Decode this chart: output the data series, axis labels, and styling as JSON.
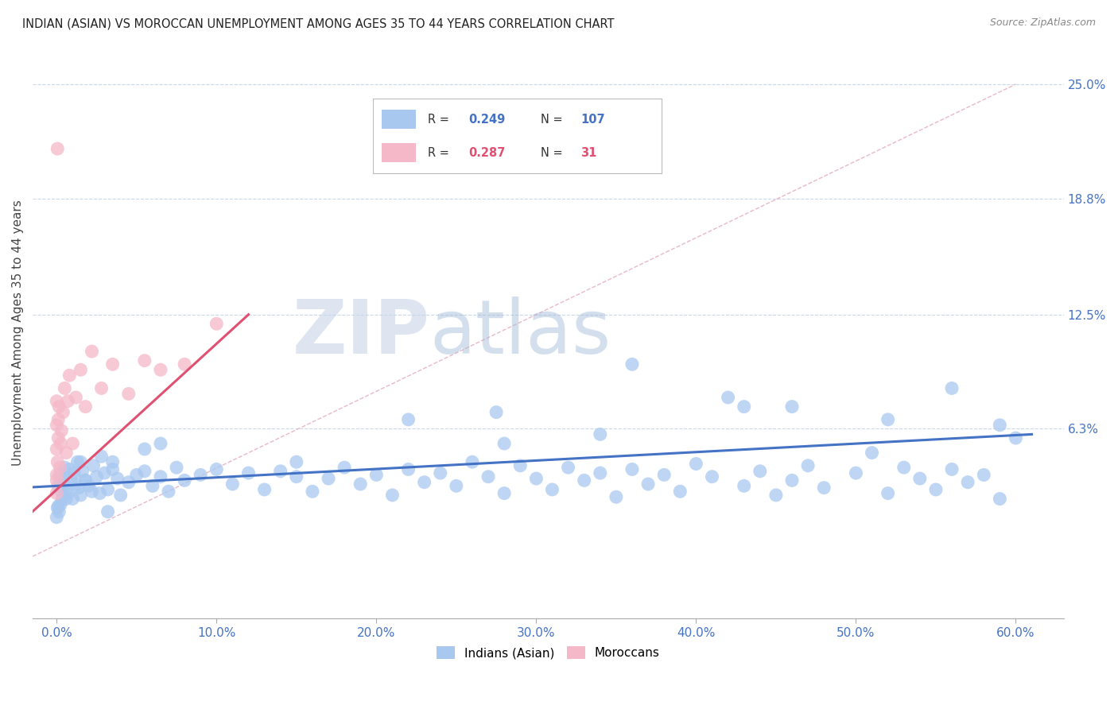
{
  "title": "INDIAN (ASIAN) VS MOROCCAN UNEMPLOYMENT AMONG AGES 35 TO 44 YEARS CORRELATION CHART",
  "source": "Source: ZipAtlas.com",
  "ylabel": "Unemployment Among Ages 35 to 44 years",
  "xlabel_ticks": [
    "0.0%",
    "10.0%",
    "20.0%",
    "30.0%",
    "40.0%",
    "50.0%",
    "60.0%"
  ],
  "xlabel_vals": [
    0.0,
    10.0,
    20.0,
    30.0,
    40.0,
    50.0,
    60.0
  ],
  "ylabel_ticks": [
    "6.3%",
    "12.5%",
    "18.8%",
    "25.0%"
  ],
  "ylabel_vals": [
    6.3,
    12.5,
    18.8,
    25.0
  ],
  "xlim": [
    -1.5,
    63
  ],
  "ylim": [
    -4.0,
    27.0
  ],
  "legend_label_1": "Indians (Asian)",
  "legend_label_2": "Moroccans",
  "r1": 0.249,
  "n1": 107,
  "r2": 0.287,
  "n2": 31,
  "color_blue": "#a8c8f0",
  "color_pink": "#f5b8c8",
  "color_blue_text": "#4472c4",
  "color_pink_text": "#e05070",
  "color_trend_blue": "#4472c4",
  "color_trend_pink": "#e05070",
  "color_diagonal": "#e8b8c8",
  "color_grid": "#c8d8e8",
  "trend_blue_x0": 0.0,
  "trend_blue_y0": 3.2,
  "trend_blue_x1": 61.0,
  "trend_blue_y1": 6.0,
  "trend_pink_x0": 0.0,
  "trend_pink_y0": 3.0,
  "trend_pink_x1": 12.0,
  "trend_pink_y1": 12.5,
  "indian_x": [
    0.1,
    0.1,
    0.2,
    0.3,
    0.4,
    0.5,
    0.6,
    0.7,
    0.8,
    0.9,
    1.0,
    1.1,
    1.2,
    1.3,
    1.4,
    1.5,
    1.6,
    1.8,
    2.0,
    2.2,
    2.3,
    2.5,
    2.7,
    3.0,
    3.2,
    3.5,
    3.8,
    4.0,
    4.5,
    5.0,
    5.5,
    6.0,
    6.5,
    7.0,
    7.5,
    8.0,
    9.0,
    10.0,
    11.0,
    12.0,
    13.0,
    14.0,
    15.0,
    16.0,
    17.0,
    18.0,
    19.0,
    20.0,
    21.0,
    22.0,
    23.0,
    24.0,
    25.0,
    26.0,
    27.0,
    28.0,
    29.0,
    30.0,
    31.0,
    32.0,
    33.0,
    34.0,
    35.0,
    36.0,
    37.0,
    38.0,
    39.0,
    40.0,
    41.0,
    43.0,
    44.0,
    45.0,
    46.0,
    47.0,
    48.0,
    50.0,
    52.0,
    53.0,
    54.0,
    55.0,
    56.0,
    57.0,
    58.0,
    59.0,
    60.0,
    0.0,
    0.05,
    0.15,
    0.25,
    0.35,
    1.8,
    2.8,
    3.5,
    5.5,
    15.0,
    22.0,
    28.0,
    34.0,
    43.0,
    51.0,
    56.0,
    59.0,
    27.5,
    36.0,
    42.0,
    46.0,
    52.0,
    0.6,
    1.5,
    3.2,
    6.5
  ],
  "indian_y": [
    3.2,
    2.1,
    3.8,
    2.9,
    3.5,
    4.2,
    3.0,
    2.8,
    4.1,
    3.6,
    2.5,
    3.9,
    3.3,
    4.5,
    3.1,
    2.7,
    4.0,
    3.5,
    3.2,
    2.9,
    4.3,
    3.7,
    2.8,
    3.9,
    3.0,
    4.1,
    3.6,
    2.7,
    3.4,
    3.8,
    4.0,
    3.2,
    3.7,
    2.9,
    4.2,
    3.5,
    3.8,
    4.1,
    3.3,
    3.9,
    3.0,
    4.0,
    3.7,
    2.9,
    3.6,
    4.2,
    3.3,
    3.8,
    2.7,
    4.1,
    3.4,
    3.9,
    3.2,
    4.5,
    3.7,
    2.8,
    4.3,
    3.6,
    3.0,
    4.2,
    3.5,
    3.9,
    2.6,
    4.1,
    3.3,
    3.8,
    2.9,
    4.4,
    3.7,
    3.2,
    4.0,
    2.7,
    3.5,
    4.3,
    3.1,
    3.9,
    2.8,
    4.2,
    3.6,
    3.0,
    4.1,
    3.4,
    3.8,
    2.5,
    5.8,
    1.5,
    2.0,
    1.8,
    2.2,
    2.5,
    3.5,
    4.8,
    4.5,
    5.2,
    4.5,
    6.8,
    5.5,
    6.0,
    7.5,
    5.0,
    8.5,
    6.5,
    7.2,
    9.8,
    8.0,
    7.5,
    6.8,
    2.5,
    4.5,
    1.8,
    5.5
  ],
  "moroccan_x": [
    0.0,
    0.0,
    0.0,
    0.0,
    0.05,
    0.1,
    0.1,
    0.15,
    0.2,
    0.25,
    0.3,
    0.4,
    0.5,
    0.6,
    0.7,
    0.8,
    1.0,
    1.2,
    1.5,
    1.8,
    2.2,
    2.8,
    3.5,
    4.5,
    5.5,
    6.5,
    8.0,
    10.0,
    0.0,
    0.0,
    0.05
  ],
  "moroccan_y": [
    3.8,
    5.2,
    6.5,
    7.8,
    4.5,
    5.8,
    6.8,
    7.5,
    4.2,
    5.5,
    6.2,
    7.2,
    8.5,
    5.0,
    7.8,
    9.2,
    5.5,
    8.0,
    9.5,
    7.5,
    10.5,
    8.5,
    9.8,
    8.2,
    10.0,
    9.5,
    9.8,
    12.0,
    2.8,
    3.5,
    21.5
  ]
}
